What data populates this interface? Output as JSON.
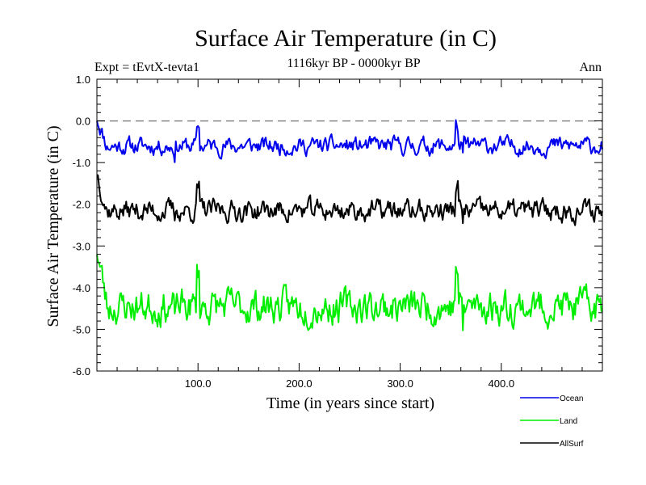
{
  "chart_data": {
    "type": "line",
    "title": "Surface Air Temperature (in C)",
    "subtitle": "1116kyr BP - 0000kyr BP",
    "left_note": "Expt = tEvtX-tevta1",
    "right_note": "Ann",
    "xlabel": "Time (in years since start)",
    "ylabel": "Surface Air Temperature (in C)",
    "xlim": [
      0,
      500
    ],
    "ylim": [
      -6.0,
      1.0
    ],
    "x_ticks": [
      100,
      200,
      300,
      400
    ],
    "x_tick_labels": [
      "100.0",
      "200.0",
      "300.0",
      "400.0"
    ],
    "y_ticks": [
      1.0,
      0.0,
      -1.0,
      -2.0,
      -3.0,
      -4.0,
      -5.0,
      -6.0
    ],
    "y_tick_labels": [
      "1.0",
      "0.0",
      "-1.0",
      "-2.0",
      "-3.0",
      "-4.0",
      "-5.0",
      "-6.0"
    ],
    "reference_line": 0.0,
    "series": [
      {
        "name": "Ocean",
        "color": "#0000ee",
        "start": 0.08,
        "mean": -0.6,
        "noise": 0.16,
        "seed": 11
      },
      {
        "name": "Land",
        "color": "#00ee00",
        "start": -3.05,
        "mean": -4.45,
        "noise": 0.32,
        "seed": 23
      },
      {
        "name": "AllSurf",
        "color": "#000000",
        "start": -1.2,
        "mean": -2.15,
        "noise": 0.2,
        "seed": 37
      }
    ],
    "legend": [
      "Ocean",
      "Land",
      "AllSurf"
    ]
  }
}
